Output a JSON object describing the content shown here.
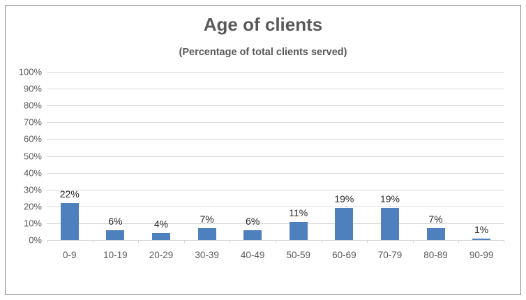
{
  "window": {
    "background": "#FFFFFF",
    "frame_border_color": "#8B8B8B"
  },
  "chart_data": {
    "type": "bar",
    "title": "Age of clients",
    "subtitle": "(Percentage of total clients served)",
    "categories": [
      "0-9",
      "10-19",
      "20-29",
      "30-39",
      "40-49",
      "50-59",
      "60-69",
      "70-79",
      "80-89",
      "90-99"
    ],
    "values": [
      22,
      6,
      4,
      7,
      6,
      11,
      19,
      19,
      7,
      1
    ],
    "data_labels": [
      "22%",
      "6%",
      "4%",
      "7%",
      "6%",
      "11%",
      "19%",
      "19%",
      "7%",
      "1%"
    ],
    "y_ticks": [
      "100%",
      "90%",
      "80%",
      "70%",
      "60%",
      "50%",
      "40%",
      "30%",
      "20%",
      "10%",
      "0%"
    ],
    "y_tick_values": [
      100,
      90,
      80,
      70,
      60,
      50,
      40,
      30,
      20,
      10,
      0
    ],
    "ylim": [
      0,
      100
    ],
    "xlabel": "",
    "ylabel": "",
    "grid": true,
    "legend_position": "none",
    "bar_color": "#4E80BD",
    "gridline_color": "#D9D9D9",
    "axis_color": "#D2D2D2",
    "axis_text_color": "#595959",
    "title_color": "#595959",
    "data_label_color": "#262626"
  }
}
